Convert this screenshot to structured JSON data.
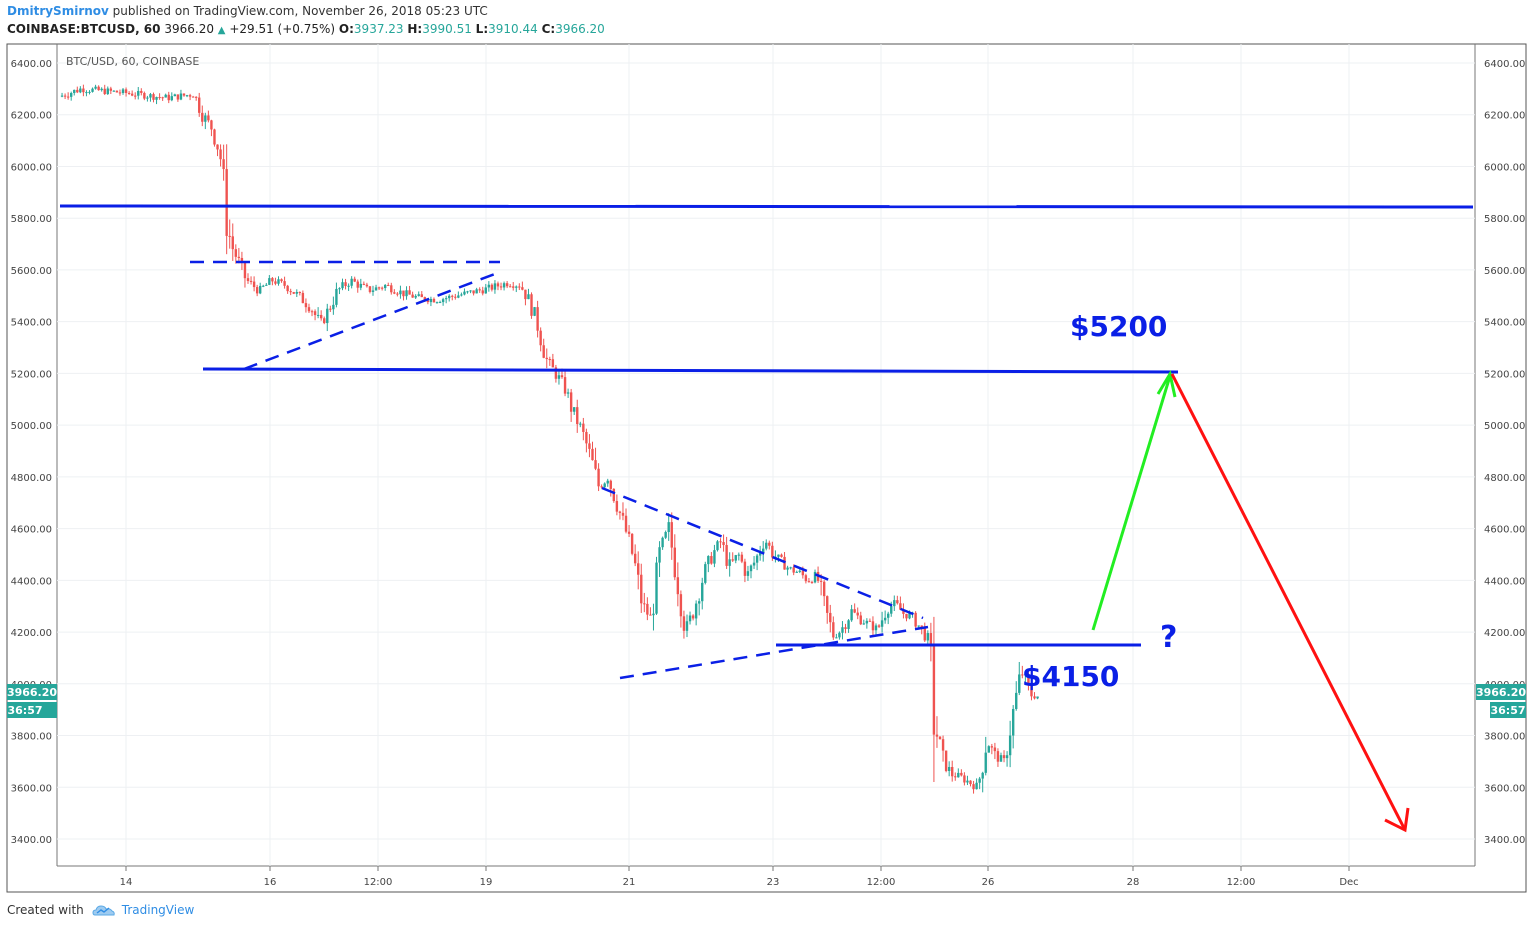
{
  "header": {
    "author": "DmitrySmirnov",
    "published": "published on TradingView.com, November 26, 2018 05:23 UTC",
    "symbol": "COINBASE:BTCUSD, 60",
    "last": "3966.20",
    "change": "+29.51 (+0.75%)",
    "open_label": "O:",
    "open": "3937.23",
    "high_label": "H:",
    "high": "3990.51",
    "low_label": "L:",
    "low": "3910.44",
    "close_label": "C:",
    "close": "3966.20"
  },
  "footer": {
    "created_with": "Created with",
    "brand": "TradingView"
  },
  "colors": {
    "up": "#26a69a",
    "down": "#ef5350",
    "line": "#0a1fe6",
    "green_arrow": "#22ee22",
    "red_arrow": "#ff1111",
    "badge": "#26a69a"
  },
  "chart_data": {
    "type": "candlestick",
    "legend_text": "BTC/USD, 60, COINBASE",
    "ylim": [
      3320,
      6460
    ],
    "y_ticks": [
      "3400.00",
      "3600.00",
      "3800.00",
      "4000.00",
      "4200.00",
      "4400.00",
      "4600.00",
      "4800.00",
      "5000.00",
      "5200.00",
      "5400.00",
      "5600.00",
      "5800.00",
      "6000.00",
      "6200.00",
      "6400.00"
    ],
    "x_ticks": [
      "14",
      "16",
      "12:00",
      "19",
      "21",
      "23",
      "12:00",
      "26",
      "28",
      "12:00",
      "Dec"
    ],
    "last_price": {
      "price": "3966.20",
      "timer": "36:57",
      "value": 3966.2
    },
    "price_path": [
      [
        0,
        6270
      ],
      [
        0.5,
        6300
      ],
      [
        1.5,
        6285
      ],
      [
        2.5,
        6265
      ],
      [
        3.1,
        6280
      ],
      [
        3.3,
        6200
      ],
      [
        3.5,
        6150
      ],
      [
        3.7,
        6050
      ],
      [
        3.85,
        5800
      ],
      [
        3.95,
        5700
      ],
      [
        4.3,
        5560
      ],
      [
        4.6,
        5520
      ],
      [
        4.9,
        5560
      ],
      [
        5.2,
        5540
      ],
      [
        5.5,
        5500
      ],
      [
        5.8,
        5450
      ],
      [
        6,
        5390
      ],
      [
        6.2,
        5450
      ],
      [
        6.4,
        5520
      ],
      [
        6.7,
        5560
      ],
      [
        7.1,
        5520
      ],
      [
        7.5,
        5540
      ],
      [
        7.9,
        5510
      ],
      [
        8.3,
        5490
      ],
      [
        8.7,
        5485
      ],
      [
        9.1,
        5500
      ],
      [
        9.5,
        5515
      ],
      [
        9.9,
        5530
      ],
      [
        10.3,
        5550
      ],
      [
        10.6,
        5540
      ],
      [
        10.8,
        5480
      ],
      [
        11.0,
        5380
      ],
      [
        11.2,
        5250
      ],
      [
        11.4,
        5200
      ],
      [
        11.6,
        5150
      ],
      [
        11.8,
        5050
      ],
      [
        12.0,
        4980
      ],
      [
        12.2,
        4880
      ],
      [
        12.4,
        4760
      ],
      [
        12.6,
        4800
      ],
      [
        12.8,
        4700
      ],
      [
        13.0,
        4600
      ],
      [
        13.2,
        4480
      ],
      [
        13.4,
        4300
      ],
      [
        13.6,
        4250
      ],
      [
        13.8,
        4500
      ],
      [
        14.0,
        4600
      ],
      [
        14.2,
        4400
      ],
      [
        14.4,
        4200
      ],
      [
        14.6,
        4300
      ],
      [
        14.8,
        4420
      ],
      [
        15.0,
        4500
      ],
      [
        15.2,
        4550
      ],
      [
        15.4,
        4450
      ],
      [
        15.6,
        4500
      ],
      [
        15.8,
        4420
      ],
      [
        16.0,
        4480
      ],
      [
        16.2,
        4560
      ],
      [
        16.4,
        4500
      ],
      [
        16.6,
        4470
      ],
      [
        16.8,
        4440
      ],
      [
        17.0,
        4430
      ],
      [
        17.2,
        4400
      ],
      [
        17.4,
        4420
      ],
      [
        17.6,
        4280
      ],
      [
        17.8,
        4180
      ],
      [
        18.0,
        4220
      ],
      [
        18.2,
        4280
      ],
      [
        18.4,
        4250
      ],
      [
        18.6,
        4230
      ],
      [
        18.8,
        4210
      ],
      [
        19.0,
        4290
      ],
      [
        19.2,
        4310
      ],
      [
        19.4,
        4270
      ],
      [
        19.6,
        4260
      ],
      [
        19.8,
        4210
      ],
      [
        20.0,
        4160
      ],
      [
        20.1,
        3850
      ],
      [
        20.3,
        3700
      ],
      [
        20.5,
        3650
      ],
      [
        20.7,
        3640
      ],
      [
        20.9,
        3620
      ],
      [
        21.1,
        3600
      ],
      [
        21.3,
        3780
      ],
      [
        21.5,
        3720
      ],
      [
        21.7,
        3700
      ],
      [
        21.9,
        3880
      ],
      [
        22.1,
        4050
      ],
      [
        22.3,
        3960
      ],
      [
        22.5,
        3950
      ]
    ],
    "annotations": {
      "label_5200": "$5200",
      "label_4150": "$4150",
      "question": "?"
    }
  }
}
